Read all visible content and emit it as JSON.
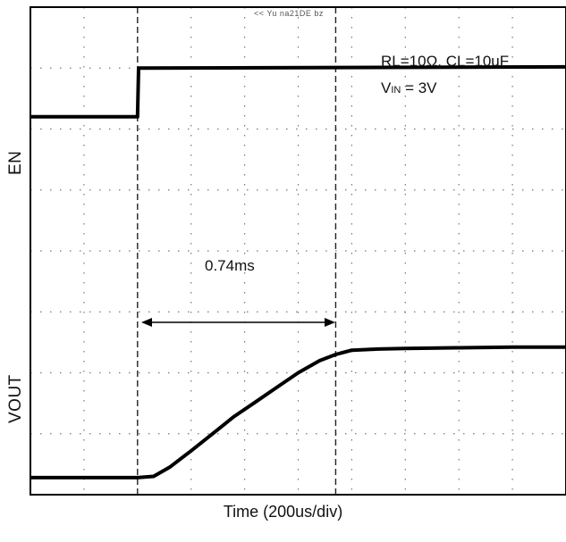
{
  "chart_data": {
    "type": "line",
    "title": "",
    "xlabel": "Time (200us/div)",
    "ylabels": [
      "EN",
      "VOUT"
    ],
    "x_unit": "div",
    "x_range": [
      0,
      10
    ],
    "y_unit": "div",
    "y_range": [
      0,
      8
    ],
    "grid": true,
    "cursors_x": [
      2.0,
      5.7
    ],
    "header_text": "<< Yu na21DE bz",
    "annotations": {
      "conditions_line1": "RL=10Ω, CL=10uF",
      "vin_prefix": "V",
      "vin_subscript": "IN",
      "vin_suffix": " = 3V",
      "delay": "0.74ms"
    },
    "series": [
      {
        "name": "EN",
        "x": [
          0,
          1.98,
          2.0,
          2.02,
          10
        ],
        "y": [
          6.2,
          6.2,
          6.2,
          7.0,
          7.02
        ]
      },
      {
        "name": "VOUT",
        "x": [
          0,
          2.0,
          2.3,
          2.6,
          3.0,
          3.4,
          3.8,
          4.2,
          4.6,
          5.0,
          5.4,
          5.7,
          6.0,
          6.5,
          7.0,
          8.0,
          9.0,
          10.0
        ],
        "y": [
          0.28,
          0.28,
          0.3,
          0.45,
          0.72,
          1.0,
          1.28,
          1.52,
          1.76,
          2.0,
          2.2,
          2.3,
          2.37,
          2.39,
          2.4,
          2.41,
          2.42,
          2.42
        ]
      }
    ]
  }
}
